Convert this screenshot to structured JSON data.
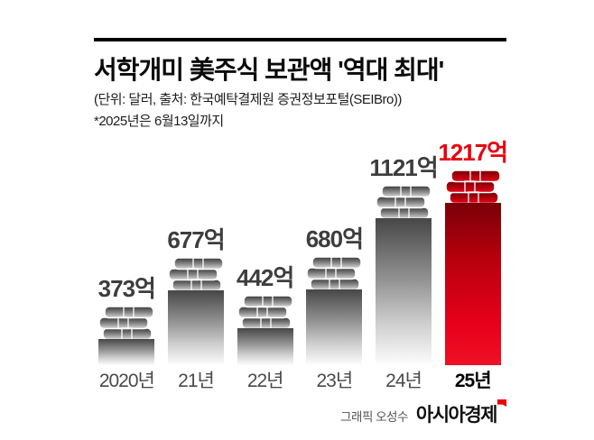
{
  "header": {
    "title": "서학개미 美주식 보관액 '역대 최대'",
    "subtitle": "(단위: 달러, 출처: 한국예탁결제원 증권정보포털(SEIBro))",
    "note": "*2025년은 6월13일까지"
  },
  "chart_data": {
    "type": "bar",
    "title": "서학개미 美주식 보관액 '역대 최대'",
    "categories": [
      "2020년",
      "21년",
      "22년",
      "23년",
      "24년",
      "25년"
    ],
    "values": [
      373,
      677,
      442,
      680,
      1121,
      1217
    ],
    "value_labels": [
      "373억",
      "677억",
      "442억",
      "680억",
      "1121억",
      "1217억"
    ],
    "unit": "억 달러",
    "xlabel": "",
    "ylabel": "",
    "ylim": [
      0,
      1300
    ],
    "grid": false,
    "legend": false,
    "highlight_index": 5,
    "colors": {
      "bar_gradient_top": "#474747",
      "bar_gradient_bottom": "#fdfdfd",
      "highlight_red": "#e8000f",
      "highlight_red_dark": "#7a0008",
      "value_label": "#3d3d3d",
      "category_label": "#4a4a4a"
    }
  },
  "footer": {
    "credit": "그래픽 오성수",
    "brand": "아시아경제"
  }
}
